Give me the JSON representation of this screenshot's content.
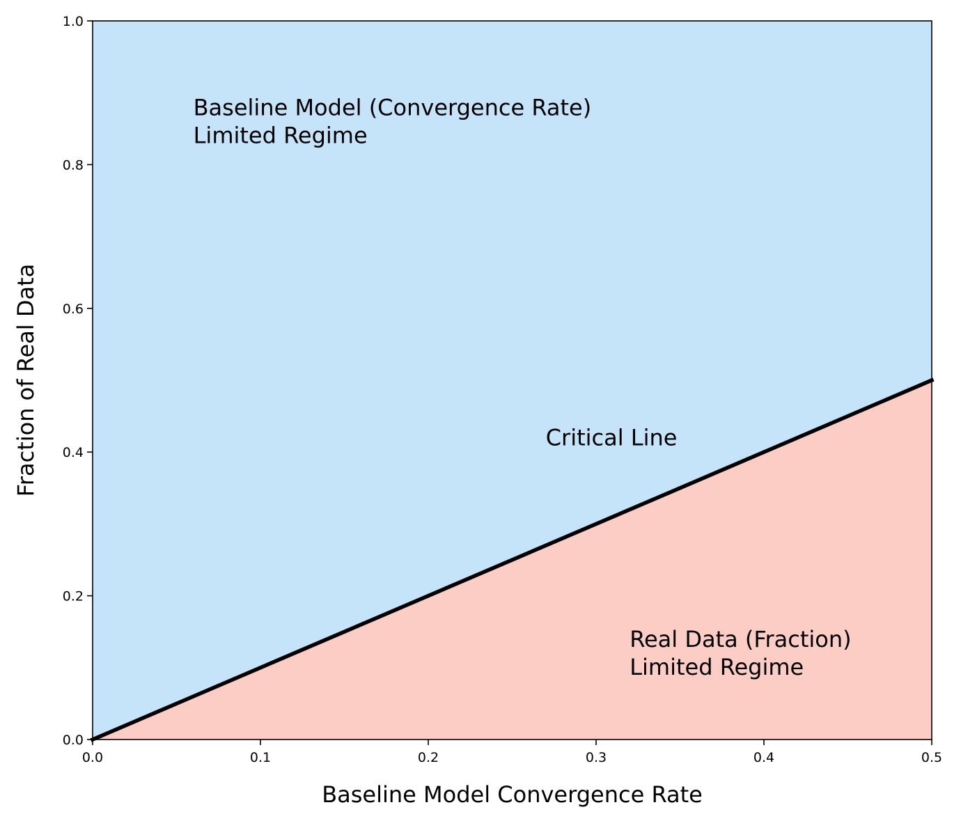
{
  "chart_data": {
    "type": "area",
    "title": "",
    "xlabel": "Baseline Model Convergence Rate",
    "ylabel": "Fraction of Real Data",
    "xlim": [
      0.0,
      0.5
    ],
    "ylim": [
      0.0,
      1.0
    ],
    "x_ticks": [
      "0.0",
      "0.1",
      "0.2",
      "0.3",
      "0.4",
      "0.5"
    ],
    "y_ticks": [
      "0.0",
      "0.2",
      "0.4",
      "0.6",
      "0.8",
      "1.0"
    ],
    "grid": false,
    "series": [
      {
        "name": "Critical Line",
        "x": [
          0.0,
          0.5
        ],
        "y": [
          0.0,
          0.5
        ],
        "color": "#000000"
      }
    ],
    "regions": [
      {
        "name": "Baseline Model (Convergence Rate) Limited Regime",
        "where": "above critical line",
        "color": "#c5e3f9"
      },
      {
        "name": "Real Data (Fraction) Limited Regime",
        "where": "below critical line",
        "color": "#fbcdc4"
      }
    ],
    "annotations": [
      {
        "id": "baseline",
        "lines": [
          "Baseline Model (Convergence Rate)",
          "Limited Regime"
        ],
        "x": 0.06,
        "y": 0.86
      },
      {
        "id": "critical",
        "lines": [
          "Critical Line"
        ],
        "x": 0.27,
        "y": 0.42
      },
      {
        "id": "realdata",
        "lines": [
          "Real Data (Fraction)",
          "Limited Regime"
        ],
        "x": 0.32,
        "y": 0.12
      }
    ]
  }
}
